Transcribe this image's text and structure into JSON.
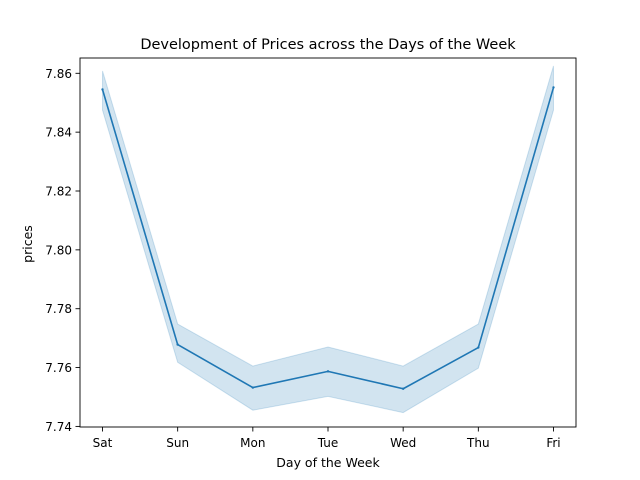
{
  "chart_data": {
    "type": "line",
    "title": "Development of Prices across the Days of the Week",
    "xlabel": "Day of the Week",
    "ylabel": "prices",
    "categories": [
      "Sat",
      "Sun",
      "Mon",
      "Tue",
      "Wed",
      "Thu",
      "Fri"
    ],
    "series": [
      {
        "values": [
          7.8545,
          7.7678,
          7.7532,
          7.7587,
          7.7528,
          7.7668,
          7.8552
        ],
        "ci_lower": [
          7.8475,
          7.7618,
          7.7455,
          7.7502,
          7.7447,
          7.7598,
          7.8475
        ],
        "ci_upper": [
          7.8608,
          7.7748,
          7.7605,
          7.767,
          7.7605,
          7.7748,
          7.8625
        ],
        "color": "#1f77b4"
      }
    ],
    "yticks": [
      "7.74",
      "7.76",
      "7.78",
      "7.80",
      "7.82",
      "7.84",
      "7.86"
    ],
    "ylim": [
      7.7398,
      7.8652
    ],
    "grid": false,
    "legend": "none"
  }
}
